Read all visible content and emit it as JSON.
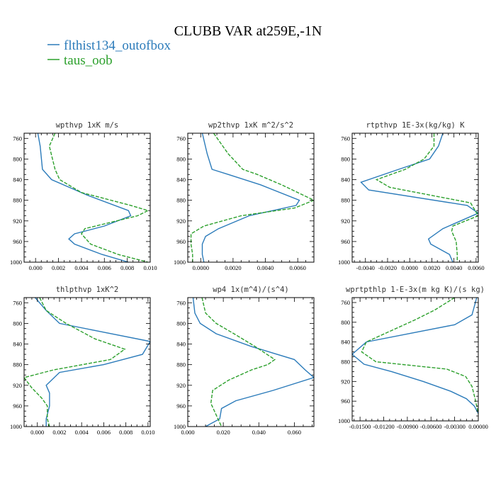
{
  "figure": {
    "title": "CLUBB VAR at259E,-1N",
    "legend": [
      {
        "label": "flthist134_outofbox",
        "color": "#2b7bba",
        "dash": "solid"
      },
      {
        "label": "taus_oob",
        "color": "#2ca02c",
        "dash": "dashed"
      }
    ]
  },
  "chart_data": [
    {
      "type": "line",
      "title": "wpthvp  1xK m/s",
      "xlim": [
        -0.001,
        0.01
      ],
      "ylim": [
        1000,
        750
      ],
      "xticks": [
        0.0,
        0.002,
        0.004,
        0.006,
        0.008,
        0.01
      ],
      "xtick_labels": [
        "0.000",
        "0.002",
        "0.004",
        "0.006",
        "0.008",
        "0.010"
      ],
      "yticks": [
        760,
        800,
        840,
        880,
        920,
        960,
        1000
      ],
      "ytick_labels": [
        "760",
        "800",
        "840",
        "880",
        "920",
        "960",
        "1000"
      ],
      "series": [
        {
          "name": "flthist134_outofbox",
          "x": [
            0.0002,
            0.0004,
            0.0006,
            0.0014,
            0.0045,
            0.0081,
            0.0083,
            0.006,
            0.0034,
            0.0029,
            0.0034,
            0.0058,
            0.0081
          ],
          "y": [
            750,
            775,
            820,
            840,
            870,
            900,
            910,
            930,
            945,
            955,
            965,
            985,
            1000
          ]
        },
        {
          "name": "taus_oob",
          "x": [
            0.0017,
            0.0012,
            0.0017,
            0.0021,
            0.004,
            0.0083,
            0.0098,
            0.0089,
            0.0043,
            0.004,
            0.0048,
            0.0072,
            0.0098
          ],
          "y": [
            750,
            775,
            820,
            840,
            865,
            890,
            900,
            910,
            935,
            945,
            965,
            985,
            1000
          ]
        }
      ]
    },
    {
      "type": "line",
      "title": "wp2thvp  1xK m^2/s^2",
      "xlim": [
        -0.0008,
        0.007
      ],
      "ylim": [
        1000,
        750
      ],
      "xticks": [
        0.0,
        0.002,
        0.004,
        0.006
      ],
      "xtick_labels": [
        "0.0000",
        "0.0020",
        "0.0040",
        "0.0060"
      ],
      "yticks": [
        760,
        800,
        840,
        880,
        920,
        960,
        1000
      ],
      "ytick_labels": [
        "760",
        "800",
        "840",
        "880",
        "920",
        "960",
        "1000"
      ],
      "series": [
        {
          "name": "flthist134_outofbox",
          "x": [
            0.0001,
            0.0004,
            0.0007,
            0.0017,
            0.0037,
            0.0061,
            0.0059,
            0.003,
            0.0011,
            0.0003,
            0.0001,
            0.0001,
            0.0002
          ],
          "y": [
            750,
            790,
            820,
            830,
            850,
            880,
            890,
            910,
            935,
            950,
            965,
            985,
            1000
          ]
        },
        {
          "name": "taus_oob",
          "x": [
            0.0008,
            0.0017,
            0.0026,
            0.0035,
            0.005,
            0.007,
            0.0058,
            0.0025,
            0.0002,
            -0.0006,
            -0.0006,
            -0.0005,
            -0.0005
          ],
          "y": [
            750,
            790,
            820,
            830,
            850,
            880,
            895,
            910,
            930,
            945,
            965,
            985,
            1000
          ]
        }
      ]
    },
    {
      "type": "line",
      "title": "rtpthvp  1E-3x(kg/kg) K",
      "xlim": [
        -0.0052,
        0.0062
      ],
      "ylim": [
        1000,
        750
      ],
      "xticks": [
        -0.004,
        -0.002,
        0.0,
        0.002,
        0.004,
        0.006
      ],
      "xtick_labels": [
        "-0.0040",
        "-0.0020",
        "0.0000",
        "0.0020",
        "0.0040",
        "0.0060"
      ],
      "yticks": [
        760,
        800,
        840,
        880,
        920,
        960,
        1000
      ],
      "ytick_labels": [
        "760",
        "800",
        "840",
        "880",
        "920",
        "960",
        "1000"
      ],
      "series": [
        {
          "name": "flthist134_outofbox",
          "x": [
            0.003,
            0.0026,
            0.0018,
            -0.001,
            -0.0044,
            -0.0037,
            0.0052,
            0.0062,
            0.003,
            0.0017,
            0.0019,
            0.0036,
            0.0039
          ],
          "y": [
            750,
            775,
            800,
            820,
            845,
            860,
            890,
            905,
            935,
            955,
            965,
            985,
            1000
          ]
        },
        {
          "name": "taus_oob",
          "x": [
            0.0022,
            0.0022,
            0.0013,
            -0.0004,
            -0.003,
            -0.0018,
            0.0055,
            0.0062,
            0.0039,
            0.0038,
            0.0042,
            0.0043,
            0.0043
          ],
          "y": [
            750,
            775,
            800,
            820,
            840,
            855,
            885,
            910,
            930,
            940,
            960,
            985,
            1000
          ]
        }
      ]
    },
    {
      "type": "line",
      "title": "thlpthvp  1xK^2",
      "xlim": [
        -0.0012,
        0.0102
      ],
      "ylim": [
        1000,
        750
      ],
      "xticks": [
        0.0,
        0.002,
        0.004,
        0.006,
        0.008,
        0.01
      ],
      "xtick_labels": [
        "0.000",
        "0.002",
        "0.004",
        "0.006",
        "0.008",
        "0.010"
      ],
      "yticks": [
        760,
        800,
        840,
        880,
        920,
        960,
        1000
      ],
      "ytick_labels": [
        "760",
        "800",
        "840",
        "880",
        "920",
        "960",
        "1000"
      ],
      "series": [
        {
          "name": "flthist134_outofbox",
          "x": [
            -0.0002,
            0.0008,
            0.002,
            0.0055,
            0.0102,
            0.0095,
            0.006,
            0.002,
            0.0008,
            0.0011,
            0.0011,
            0.0008,
            0.0008
          ],
          "y": [
            750,
            775,
            800,
            815,
            835,
            860,
            880,
            895,
            920,
            935,
            960,
            985,
            1000
          ]
        },
        {
          "name": "taus_oob",
          "x": [
            0.0002,
            0.0008,
            0.0026,
            0.0052,
            0.0079,
            0.0066,
            0.0015,
            -0.0012,
            -0.0005,
            0.0004,
            0.0009,
            0.0009,
            0.0011
          ],
          "y": [
            750,
            775,
            800,
            830,
            850,
            870,
            890,
            905,
            925,
            945,
            960,
            985,
            1000
          ]
        }
      ]
    },
    {
      "type": "line",
      "title": "wp4  1x(m^4)/(s^4)",
      "xlim": [
        0.0,
        0.071
      ],
      "ylim": [
        1000,
        750
      ],
      "xticks": [
        0.0,
        0.02,
        0.04,
        0.06
      ],
      "xtick_labels": [
        "0.000",
        "0.020",
        "0.040",
        "0.060"
      ],
      "yticks": [
        760,
        800,
        840,
        880,
        920,
        960,
        1000
      ],
      "ytick_labels": [
        "760",
        "800",
        "840",
        "880",
        "920",
        "960",
        "1000"
      ],
      "series": [
        {
          "name": "flthist134_outofbox",
          "x": [
            0.003,
            0.004,
            0.007,
            0.016,
            0.036,
            0.06,
            0.066,
            0.071,
            0.048,
            0.027,
            0.019,
            0.018,
            0.01
          ],
          "y": [
            750,
            780,
            800,
            820,
            845,
            870,
            890,
            905,
            930,
            950,
            965,
            985,
            1000
          ]
        },
        {
          "name": "taus_oob",
          "x": [
            0.008,
            0.01,
            0.016,
            0.026,
            0.038,
            0.049,
            0.045,
            0.036,
            0.023,
            0.014,
            0.013,
            0.017,
            0.019
          ],
          "y": [
            750,
            780,
            800,
            820,
            845,
            870,
            880,
            890,
            910,
            930,
            955,
            985,
            1000
          ]
        }
      ]
    },
    {
      "type": "line",
      "title": "wprtpthlp  1-E-3x(m kg K)/(s kg)",
      "xlim": [
        -0.016,
        0.0
      ],
      "ylim": [
        1000,
        750
      ],
      "xticks": [
        -0.015,
        -0.012,
        -0.009,
        -0.006,
        -0.003,
        0.0
      ],
      "xtick_labels": [
        "-0.01500",
        "-0.01200",
        "-0.00900",
        "-0.00600",
        "-0.00300",
        "0.00000"
      ],
      "yticks": [
        760,
        800,
        840,
        880,
        920,
        960,
        1000
      ],
      "ytick_labels": [
        "760",
        "800",
        "840",
        "880",
        "920",
        "960",
        "1000"
      ],
      "series": [
        {
          "name": "flthist134_outofbox",
          "x": [
            -0.0002,
            -0.0008,
            -0.003,
            -0.0142,
            -0.016,
            -0.0145,
            -0.011,
            -0.007,
            -0.0035,
            -0.0015,
            -0.0005,
            0.0
          ],
          "y": [
            750,
            785,
            805,
            840,
            865,
            885,
            900,
            920,
            940,
            955,
            970,
            985
          ]
        },
        {
          "name": "taus_oob",
          "x": [
            -0.003,
            -0.0055,
            -0.008,
            -0.0142,
            -0.0148,
            -0.013,
            -0.004,
            -0.0016,
            -0.0008,
            -0.0004,
            0.0
          ],
          "y": [
            750,
            775,
            795,
            840,
            860,
            880,
            895,
            910,
            930,
            955,
            985
          ]
        }
      ]
    }
  ]
}
